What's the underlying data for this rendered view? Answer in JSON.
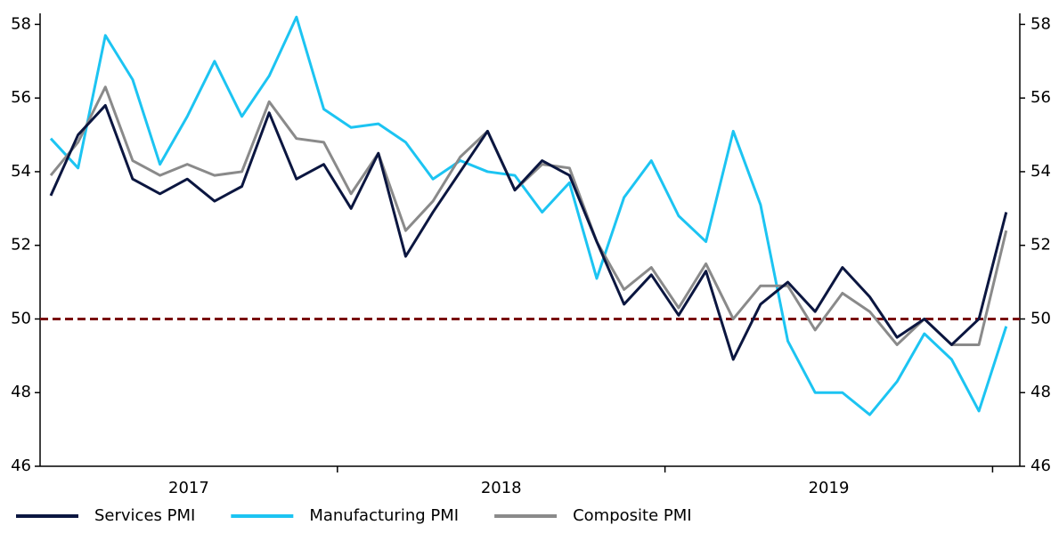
{
  "chart_data": {
    "type": "line",
    "categories": [
      null,
      null,
      null,
      null,
      null,
      null,
      null,
      null,
      null,
      null,
      null,
      null,
      null,
      null,
      null,
      null,
      null,
      null,
      null,
      null,
      null,
      null,
      null,
      null,
      null,
      null,
      null,
      null,
      null,
      null,
      null,
      null,
      null,
      null,
      null,
      null
    ],
    "x_groups": [
      {
        "label": "2017",
        "first": -1
      },
      {
        "label": "2018",
        "first": 11
      },
      {
        "label": "2019",
        "first": 23
      }
    ],
    "series": [
      {
        "name": "Services PMI",
        "color": "#0b1640",
        "values": [
          53.35,
          55.0,
          55.8,
          53.8,
          53.4,
          53.8,
          53.2,
          53.6,
          55.6,
          53.8,
          54.2,
          53.0,
          54.5,
          51.7,
          52.9,
          54.0,
          55.1,
          53.5,
          54.3,
          53.9,
          52.1,
          50.4,
          51.2,
          50.1,
          51.3,
          48.9,
          50.4,
          51.0,
          50.2,
          51.4,
          50.6,
          49.5,
          50.0,
          49.3,
          50.0,
          52.9
        ]
      },
      {
        "name": "Manufacturing PMI",
        "color": "#1cc4f2",
        "values": [
          54.9,
          54.1,
          57.7,
          56.5,
          54.2,
          55.5,
          57.0,
          55.5,
          56.6,
          58.2,
          55.7,
          55.2,
          55.3,
          54.8,
          53.8,
          54.3,
          54.0,
          53.9,
          52.9,
          53.7,
          51.1,
          53.3,
          54.3,
          52.8,
          52.1,
          55.1,
          53.1,
          49.4,
          48.0,
          48.0,
          47.4,
          48.3,
          49.6,
          48.9,
          47.5,
          49.8
        ]
      },
      {
        "name": "Composite PMI",
        "color": "#8a8a8a",
        "values": [
          53.9,
          54.8,
          56.3,
          54.3,
          53.9,
          54.2,
          53.9,
          54.0,
          55.9,
          54.9,
          54.8,
          53.4,
          54.5,
          52.4,
          53.2,
          54.4,
          55.1,
          53.5,
          54.2,
          54.1,
          52.1,
          50.8,
          51.4,
          50.3,
          51.5,
          50.0,
          50.9,
          50.9,
          49.7,
          50.7,
          50.2,
          49.3,
          50.0,
          49.3,
          49.3,
          52.4
        ]
      }
    ],
    "reference_line": {
      "value": 50,
      "color": "#7a0c0c"
    },
    "ylim": [
      46,
      58.3
    ],
    "yticks": [
      46,
      48,
      50,
      52,
      54,
      56,
      58
    ],
    "y2lim": [
      46,
      58.3
    ],
    "y2ticks": [
      46,
      48,
      50,
      52,
      54,
      56,
      58
    ],
    "legend": "bottom-left"
  }
}
